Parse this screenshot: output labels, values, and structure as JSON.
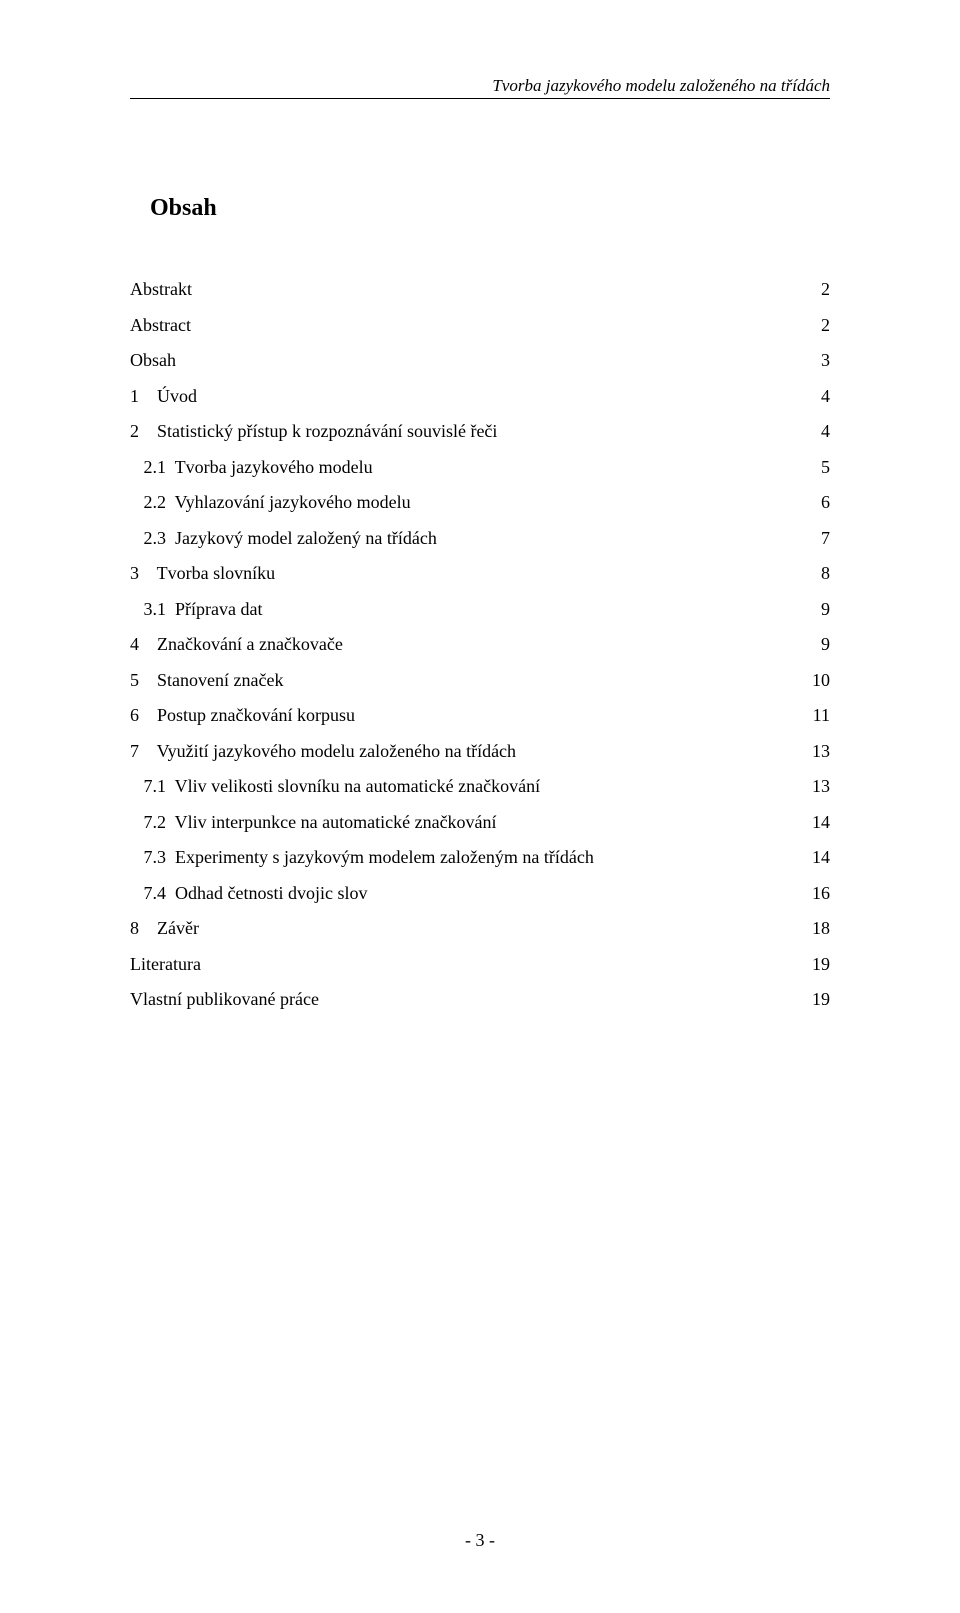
{
  "colors": {
    "text": "#000000",
    "background": "#ffffff",
    "rule": "#000000"
  },
  "typography": {
    "body_fontsize_pt": 13,
    "title_fontsize_pt": 18,
    "title_weight": "bold",
    "header_style": "italic"
  },
  "running_header": "Tvorba jazykového modelu založeného na třídách",
  "toc_title": "Obsah",
  "toc_entries": [
    {
      "label": "Abstrakt",
      "page": "2",
      "indent": 0,
      "number": ""
    },
    {
      "label": "Abstract",
      "page": "2",
      "indent": 0,
      "number": ""
    },
    {
      "label": "Obsah",
      "page": "3",
      "indent": 0,
      "number": ""
    },
    {
      "label": "Úvod",
      "page": "4",
      "indent": 0,
      "number": "1"
    },
    {
      "label": "Statistický přístup k rozpoznávání souvislé řeči",
      "page": "4",
      "indent": 0,
      "number": "2"
    },
    {
      "label": "Tvorba jazykového modelu",
      "page": "5",
      "indent": 1,
      "number": "2.1"
    },
    {
      "label": "Vyhlazování jazykového modelu",
      "page": "6",
      "indent": 1,
      "number": "2.2"
    },
    {
      "label": "Jazykový model založený na třídách",
      "page": "7",
      "indent": 1,
      "number": "2.3"
    },
    {
      "label": "Tvorba slovníku",
      "page": "8",
      "indent": 0,
      "number": "3"
    },
    {
      "label": "Příprava dat",
      "page": "9",
      "indent": 1,
      "number": "3.1"
    },
    {
      "label": "Značkování a značkovače",
      "page": "9",
      "indent": 0,
      "number": "4"
    },
    {
      "label": "Stanovení značek",
      "page": "10",
      "indent": 0,
      "number": "5"
    },
    {
      "label": "Postup značkování korpusu",
      "page": "11",
      "indent": 0,
      "number": "6"
    },
    {
      "label": "Využití jazykového modelu založeného na třídách",
      "page": "13",
      "indent": 0,
      "number": "7"
    },
    {
      "label": "Vliv velikosti slovníku na automatické značkování",
      "page": "13",
      "indent": 1,
      "number": "7.1"
    },
    {
      "label": "Vliv interpunkce na automatické značkování",
      "page": "14",
      "indent": 1,
      "number": "7.2"
    },
    {
      "label": "Experimenty s jazykovým modelem založeným na třídách",
      "page": "14",
      "indent": 1,
      "number": "7.3"
    },
    {
      "label": "Odhad četnosti dvojic slov",
      "page": "16",
      "indent": 1,
      "number": "7.4"
    },
    {
      "label": "Závěr",
      "page": "18",
      "indent": 0,
      "number": "8"
    },
    {
      "label": "Literatura",
      "page": "19",
      "indent": 0,
      "number": ""
    },
    {
      "label": "Vlastní publikované práce",
      "page": "19",
      "indent": 0,
      "number": ""
    }
  ],
  "page_footer": "- 3 -"
}
